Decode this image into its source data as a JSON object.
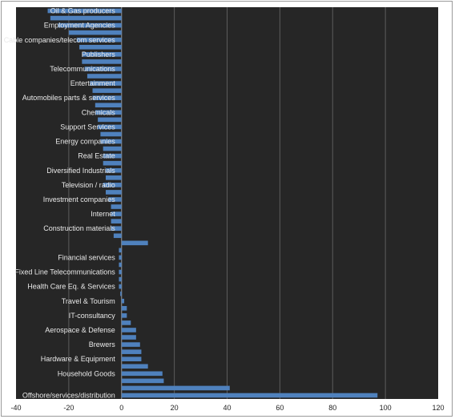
{
  "chart_data": {
    "type": "bar",
    "orientation": "horizontal",
    "title": "",
    "xlabel": "",
    "ylabel": "",
    "xlim": [
      -40,
      120
    ],
    "x_ticks": [
      "-40",
      "-20",
      "0",
      "20",
      "40",
      "60",
      "80",
      "100",
      "120"
    ],
    "grid": true,
    "legend": "none",
    "colors": {
      "bar": "#4f81bd",
      "plot_background": "#262626",
      "gridline": "#5c5c5c"
    },
    "categories": [
      "Oil & Gas producers",
      "",
      "Employment Agencies",
      "",
      "Cable companies/telecom services",
      "",
      "Publishers",
      "",
      "Telecommunications",
      "",
      "Entertainment",
      "",
      "Automobiles parts & services",
      "",
      "Chemicals",
      "",
      "Support Services",
      "",
      "Energy companies",
      "",
      "Real Estate",
      "",
      "Diversified Industrials",
      "",
      "Television / radio",
      "",
      "Investment companies",
      "",
      "Internet",
      "",
      "Construction materials",
      "",
      "",
      "",
      "Financial services",
      "",
      "Fixed Line Telecommunications",
      "",
      "Health Care Eq. & Services",
      "",
      "Travel & Tourism",
      "",
      "IT-consultancy",
      "",
      "Aerospace & Defense",
      "",
      "Brewers",
      "",
      "Hardware & Equipment",
      "",
      "Household Goods",
      "",
      "",
      "Offshore/services/distribution"
    ],
    "values": [
      -28,
      -27,
      -24,
      -20,
      -17,
      -16,
      -15,
      -15,
      -14,
      -13,
      -12,
      -11,
      -11,
      -10,
      -10,
      -9,
      -9,
      -8,
      -8,
      -7,
      -7,
      -7,
      -6,
      -6,
      -7,
      -6,
      -5,
      -4,
      -4,
      -4,
      -4,
      -3,
      10,
      -1,
      -1,
      -1,
      -1,
      -1,
      -1,
      -0.5,
      1,
      2,
      2,
      3.5,
      5.5,
      5.5,
      7,
      7.5,
      7.5,
      10,
      15.5,
      16,
      41,
      97
    ]
  }
}
